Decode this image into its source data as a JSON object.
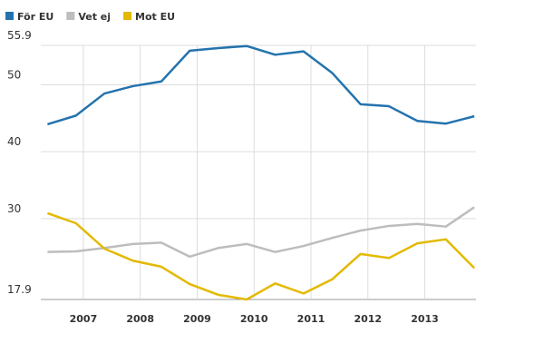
{
  "chart_data": {
    "type": "line",
    "x": [
      2006.37,
      2006.87,
      2007.37,
      2007.87,
      2008.37,
      2008.87,
      2009.37,
      2009.87,
      2010.37,
      2010.87,
      2011.37,
      2011.87,
      2012.37,
      2012.87,
      2013.37,
      2013.87
    ],
    "series": [
      {
        "name": "För EU",
        "color": "#2373ae",
        "values": [
          44.1,
          45.4,
          48.7,
          49.8,
          50.5,
          55.1,
          55.5,
          55.8,
          54.5,
          55.0,
          51.8,
          47.1,
          46.8,
          44.6,
          44.2,
          45.3
        ]
      },
      {
        "name": "Vet ej",
        "color": "#bdbdbd",
        "values": [
          25.0,
          25.1,
          25.6,
          26.2,
          26.4,
          24.3,
          25.6,
          26.2,
          25.0,
          25.9,
          27.1,
          28.2,
          28.9,
          29.2,
          28.8,
          31.7
        ]
      },
      {
        "name": "Mot EU",
        "color": "#e3b900",
        "values": [
          30.8,
          29.3,
          25.5,
          23.7,
          22.8,
          20.2,
          18.6,
          17.9,
          20.3,
          18.8,
          20.9,
          24.7,
          24.1,
          26.3,
          26.9,
          22.6
        ]
      }
    ],
    "xlim": [
      2006.3,
      2013.9
    ],
    "xticks": [
      2007,
      2008,
      2009,
      2010,
      2011,
      2012,
      2013
    ],
    "ylim": [
      17.9,
      55.9
    ],
    "yticks": [
      17.9,
      30,
      40,
      50,
      55.9
    ],
    "grid": true
  }
}
